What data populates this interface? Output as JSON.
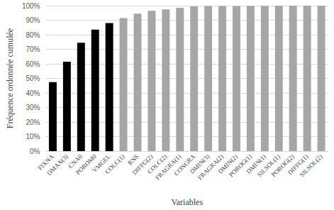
{
  "chart_data": {
    "type": "bar",
    "x_label": "Variables",
    "y_label": "Fréquence ordonnée cumulée",
    "categories": [
      "FIXNA",
      "DMAX(3)",
      "CNA0",
      "POROM0",
      "VMGEL",
      "COLC(1)",
      "RNS",
      "DIFFG(2)",
      "COLC(2)",
      "FRAGRA(1)",
      "CONGRA",
      "DMIN(3)",
      "FRAGRA(2)",
      "DMIN(2)",
      "POROG(1)",
      "DMIN(1)",
      "SILSOL(1)",
      "POROG(2)",
      "DIFFG(1)",
      "SILSOL(2)"
    ],
    "values": [
      47.5,
      61.5,
      74.5,
      83.5,
      88,
      91.5,
      94.5,
      96.5,
      97.5,
      98.5,
      99.5,
      99.7,
      99.8,
      99.8,
      99.9,
      99.9,
      100,
      100,
      100,
      100
    ],
    "colors": [
      "#000000",
      "#000000",
      "#000000",
      "#000000",
      "#000000",
      "#a6a6a6",
      "#a6a6a6",
      "#a6a6a6",
      "#a6a6a6",
      "#a6a6a6",
      "#a6a6a6",
      "#a6a6a6",
      "#a6a6a6",
      "#a6a6a6",
      "#a6a6a6",
      "#a6a6a6",
      "#a6a6a6",
      "#a6a6a6",
      "#a6a6a6",
      "#a6a6a6"
    ],
    "ylim": [
      0,
      100
    ],
    "yticks": [
      {
        "value": 0,
        "label": "0%"
      },
      {
        "value": 10,
        "label": "10%"
      },
      {
        "value": 20,
        "label": "20%"
      },
      {
        "value": 30,
        "label": "30%"
      },
      {
        "value": 40,
        "label": "40%"
      },
      {
        "value": 50,
        "label": "50%"
      },
      {
        "value": 60,
        "label": "60%"
      },
      {
        "value": 70,
        "label": "70%"
      },
      {
        "value": 80,
        "label": "80%"
      },
      {
        "value": 90,
        "label": "90%"
      },
      {
        "value": 100,
        "label": "100%"
      }
    ],
    "grid": true
  }
}
